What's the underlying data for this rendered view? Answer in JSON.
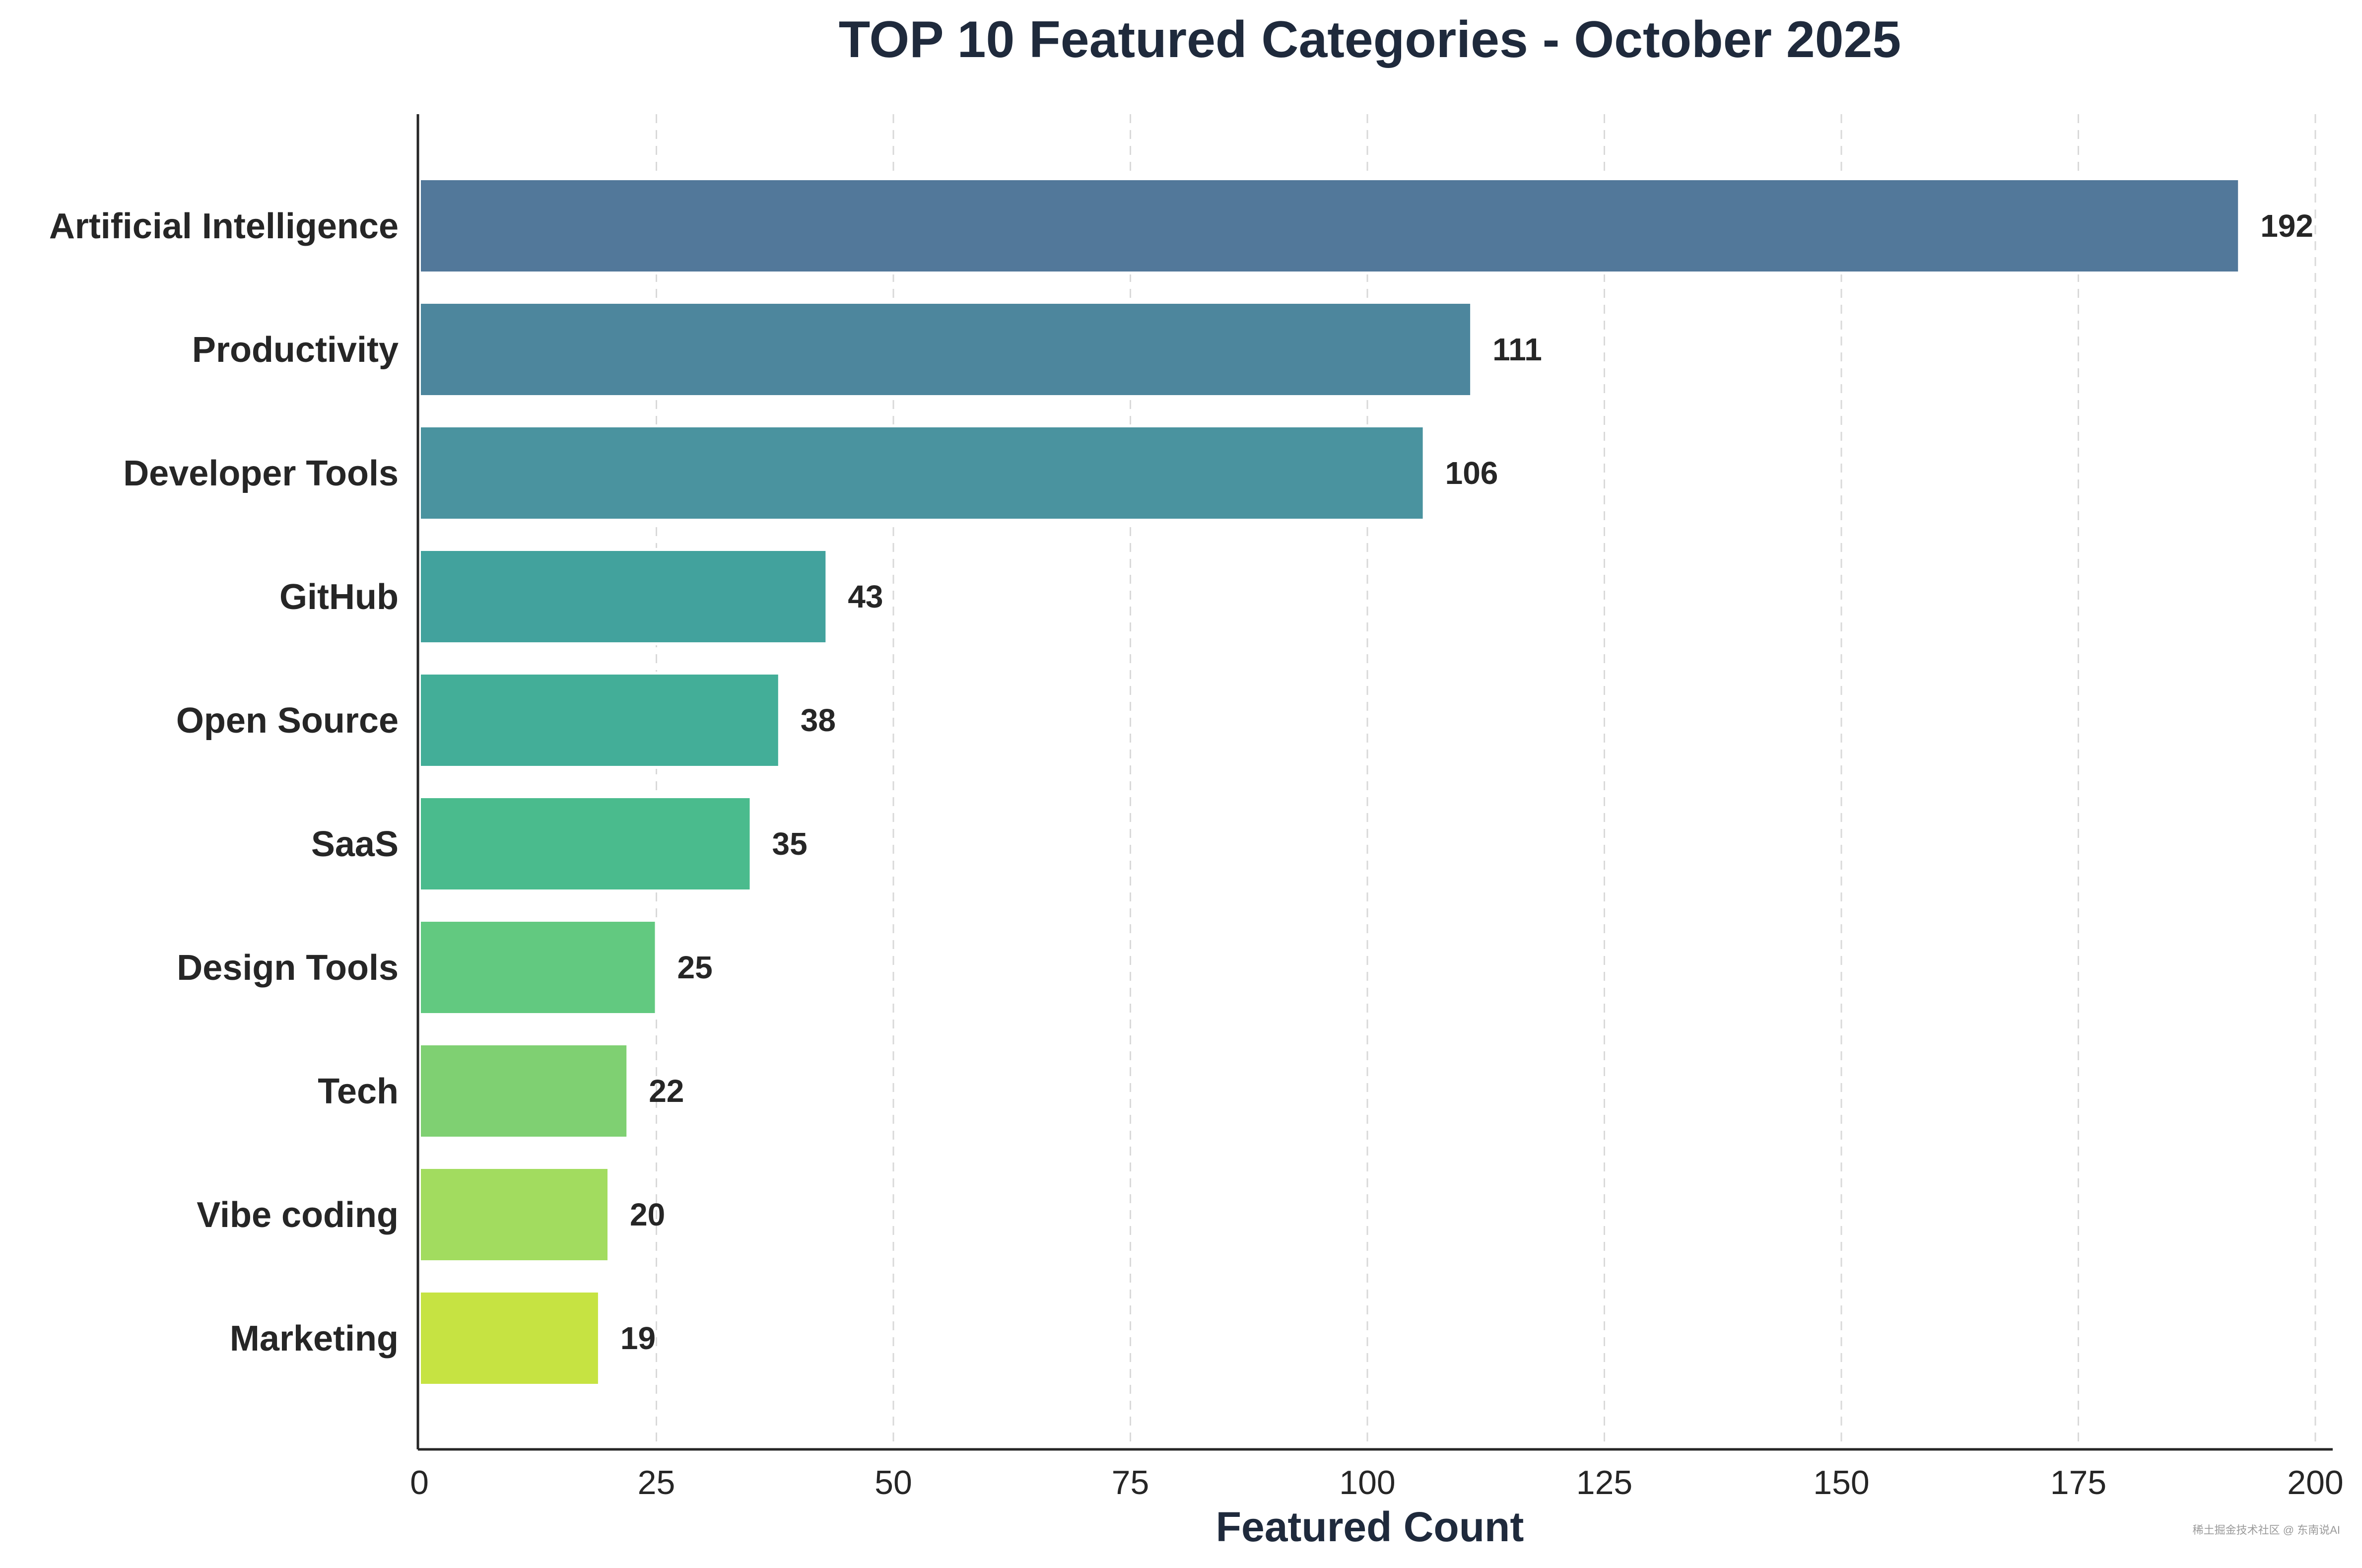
{
  "chart_data": {
    "type": "bar",
    "orientation": "horizontal",
    "title": "TOP 10 Featured Categories - October 2025",
    "xlabel": "Featured Count",
    "ylabel": "",
    "xlim": [
      0,
      200
    ],
    "xticks": [
      0,
      25,
      50,
      75,
      100,
      125,
      150,
      175,
      200
    ],
    "grid": "vertical dashed",
    "legend": "none",
    "categories": [
      "Artificial Intelligence",
      "Productivity",
      "Developer Tools",
      "GitHub",
      "Open Source",
      "SaaS",
      "Design Tools",
      "Tech",
      "Vibe coding",
      "Marketing"
    ],
    "values": [
      192,
      111,
      106,
      43,
      38,
      35,
      25,
      22,
      20,
      19
    ],
    "colors": [
      "#52789a",
      "#4d869d",
      "#4a939f",
      "#42a29d",
      "#43ae98",
      "#4abb8d",
      "#62c980",
      "#7fd072",
      "#a2dc5f",
      "#c6e342"
    ]
  },
  "watermark": "稀土掘金技术社区 @ 东南说AI"
}
